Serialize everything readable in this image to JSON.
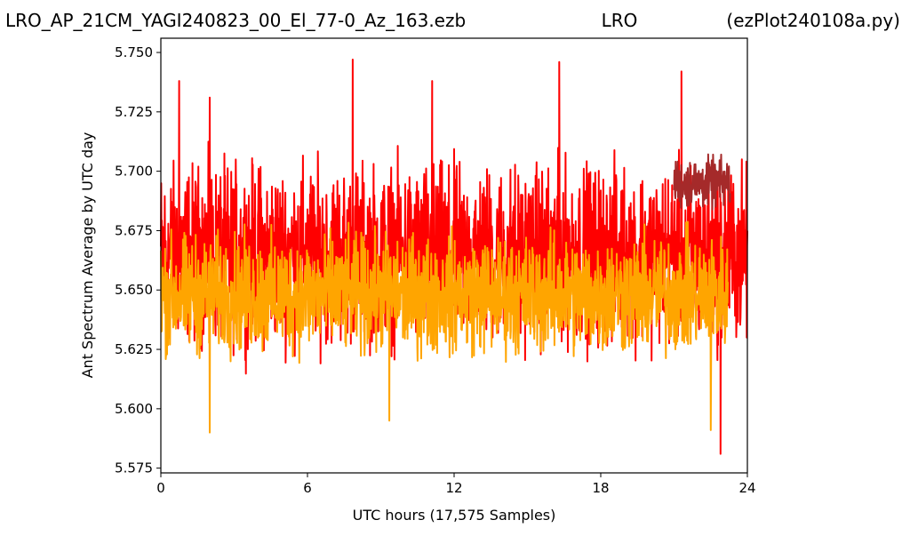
{
  "chart_data": {
    "type": "line",
    "title_left": "LRO_AP_21CM_YAGI240823_00_El_77-0_Az_163.ezb",
    "title_center": "LRO",
    "title_right": "(ezPlot240108a.py)",
    "xlabel": "UTC hours  (17,575 Samples)",
    "ylabel": "Ant Spectrum Average by UTC day",
    "xlim": [
      0,
      24
    ],
    "ylim": [
      5.573,
      5.756
    ],
    "x_ticks": [
      "0",
      "6",
      "12",
      "18",
      "24"
    ],
    "y_ticks": [
      "5.575",
      "5.600",
      "5.625",
      "5.650",
      "5.675",
      "5.700",
      "5.725",
      "5.750"
    ],
    "grid": false,
    "series": [
      {
        "color": "#ff0000",
        "x_range": [
          0,
          24
        ],
        "center": 5.672,
        "band": [
          5.612,
          5.718
        ],
        "peaks": [
          [
            0.75,
            5.738
          ],
          [
            2.0,
            5.731
          ],
          [
            7.85,
            5.747
          ],
          [
            11.1,
            5.738
          ],
          [
            16.3,
            5.746
          ],
          [
            21.3,
            5.742
          ],
          [
            22.9,
            5.581
          ]
        ]
      },
      {
        "color": "#a52a2a",
        "x_range": [
          21.0,
          23.3
        ],
        "center": 5.69,
        "band": [
          5.68,
          5.71
        ]
      },
      {
        "color": "#ffa500",
        "x_range": [
          0,
          23.2
        ],
        "center": 5.648,
        "band": [
          5.613,
          5.683
        ],
        "peaks": [
          [
            2.0,
            5.59
          ],
          [
            9.35,
            5.595
          ],
          [
            22.5,
            5.591
          ]
        ]
      }
    ]
  }
}
